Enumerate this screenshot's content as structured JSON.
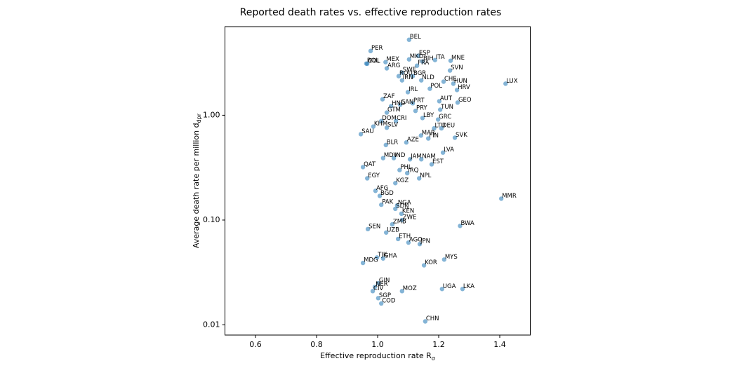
{
  "chart_data": {
    "type": "scatter",
    "title": "Reported death rates vs. effective reproduction rates",
    "x_label": "Effective reproduction rate R",
    "x_label_sub": "σ",
    "y_label": "Average death rate per million d",
    "y_label_sub": "dpr",
    "xlim": [
      0.5,
      1.5
    ],
    "ylim": [
      0.008,
      7
    ],
    "y_log": true,
    "color": "#1f77b4",
    "xticks": [
      0.6,
      0.8,
      {
        "value": 1,
        "label": "1.0"
      },
      1.2,
      1.4
    ],
    "yticks": [
      {
        "value": 0.01,
        "label": "0.01"
      },
      {
        "value": 0.1,
        "label": "0.10"
      },
      {
        "value": 1,
        "label": "1.00"
      }
    ],
    "labels": [
      "BEL",
      "PER",
      "BOL",
      "COL",
      "MEX",
      "ESP",
      "MKD",
      "BIH",
      "ITA",
      "MNE",
      "FRA",
      "ARG",
      "SVN",
      "SWE",
      "ROU",
      "BGR",
      "NLD",
      "IRN",
      "CHE",
      "HUN",
      "LUX",
      "POL",
      "HRV",
      "IRL",
      "ZAF",
      "AUT",
      "GEO",
      "PRT",
      "CAN",
      "HND",
      "TUN",
      "GTM",
      "PRY",
      "LBY",
      "GRC",
      "DOM",
      "CRI",
      "KHM",
      "SLV",
      "LTU",
      "DEU",
      "SAU",
      "MAR",
      "FIN",
      "SVK",
      "BLR",
      "AZE",
      "LVA",
      "MDV",
      "IND",
      "JAM",
      "NAM",
      "EST",
      "QAT",
      "PHL",
      "IRQ",
      "EGY",
      "NPL",
      "KGZ",
      "AFG",
      "BGD",
      "MMR",
      "PAK",
      "NGA",
      "SDN",
      "KEN",
      "ZWE",
      "ZMB",
      "BWA",
      "SEN",
      "UZB",
      "ETH",
      "AGO",
      "JPN",
      "TJK",
      "GHA",
      "MYS",
      "MDG",
      "KOR",
      "GIN",
      "NER",
      "CIV",
      "MOZ",
      "UGA",
      "LKA",
      "SGP",
      "COD",
      "CHN"
    ],
    "x": [
      1.103,
      0.977,
      0.963,
      0.966,
      1.026,
      1.133,
      1.103,
      1.147,
      1.188,
      1.239,
      1.129,
      1.03,
      1.237,
      1.08,
      1.069,
      1.115,
      1.143,
      1.08,
      1.216,
      1.248,
      1.419,
      1.171,
      1.26,
      1.099,
      1.016,
      1.202,
      1.262,
      1.115,
      1.074,
      1.044,
      1.205,
      1.03,
      1.124,
      1.147,
      1.198,
      1.012,
      1.06,
      0.986,
      1.03,
      1.185,
      1.209,
      0.945,
      1.142,
      1.166,
      1.253,
      1.027,
      1.094,
      1.214,
      1.018,
      1.053,
      1.106,
      1.143,
      1.177,
      0.952,
      1.072,
      1.097,
      0.966,
      1.136,
      1.058,
      0.993,
      1.007,
      1.405,
      1.012,
      1.064,
      1.058,
      1.078,
      1.08,
      1.048,
      1.27,
      0.968,
      1.028,
      1.067,
      1.101,
      1.138,
      0.998,
      1.018,
      1.218,
      0.952,
      1.152,
      1.002,
      0.991,
      0.984,
      1.08,
      1.211,
      1.278,
      1.002,
      1.012,
      1.156
    ],
    "values": [
      5.25,
      4.1,
      3.11,
      3.1,
      3.21,
      3.69,
      3.41,
      3.26,
      3.36,
      3.31,
      2.97,
      2.8,
      2.67,
      2.55,
      2.36,
      2.36,
      2.15,
      2.15,
      2.09,
      2.0,
      2.0,
      1.79,
      1.74,
      1.66,
      1.42,
      1.36,
      1.32,
      1.3,
      1.26,
      1.22,
      1.13,
      1.06,
      1.1,
      0.94,
      0.91,
      0.88,
      0.88,
      0.78,
      0.76,
      0.75,
      0.75,
      0.66,
      0.64,
      0.6,
      0.61,
      0.52,
      0.55,
      0.44,
      0.39,
      0.39,
      0.38,
      0.38,
      0.34,
      0.32,
      0.3,
      0.28,
      0.25,
      0.25,
      0.225,
      0.19,
      0.17,
      0.16,
      0.14,
      0.138,
      0.128,
      0.115,
      0.1,
      0.091,
      0.088,
      0.082,
      0.076,
      0.066,
      0.061,
      0.059,
      0.044,
      0.043,
      0.042,
      0.039,
      0.037,
      0.025,
      0.023,
      0.021,
      0.021,
      0.022,
      0.022,
      0.018,
      0.016,
      0.0108
    ]
  }
}
